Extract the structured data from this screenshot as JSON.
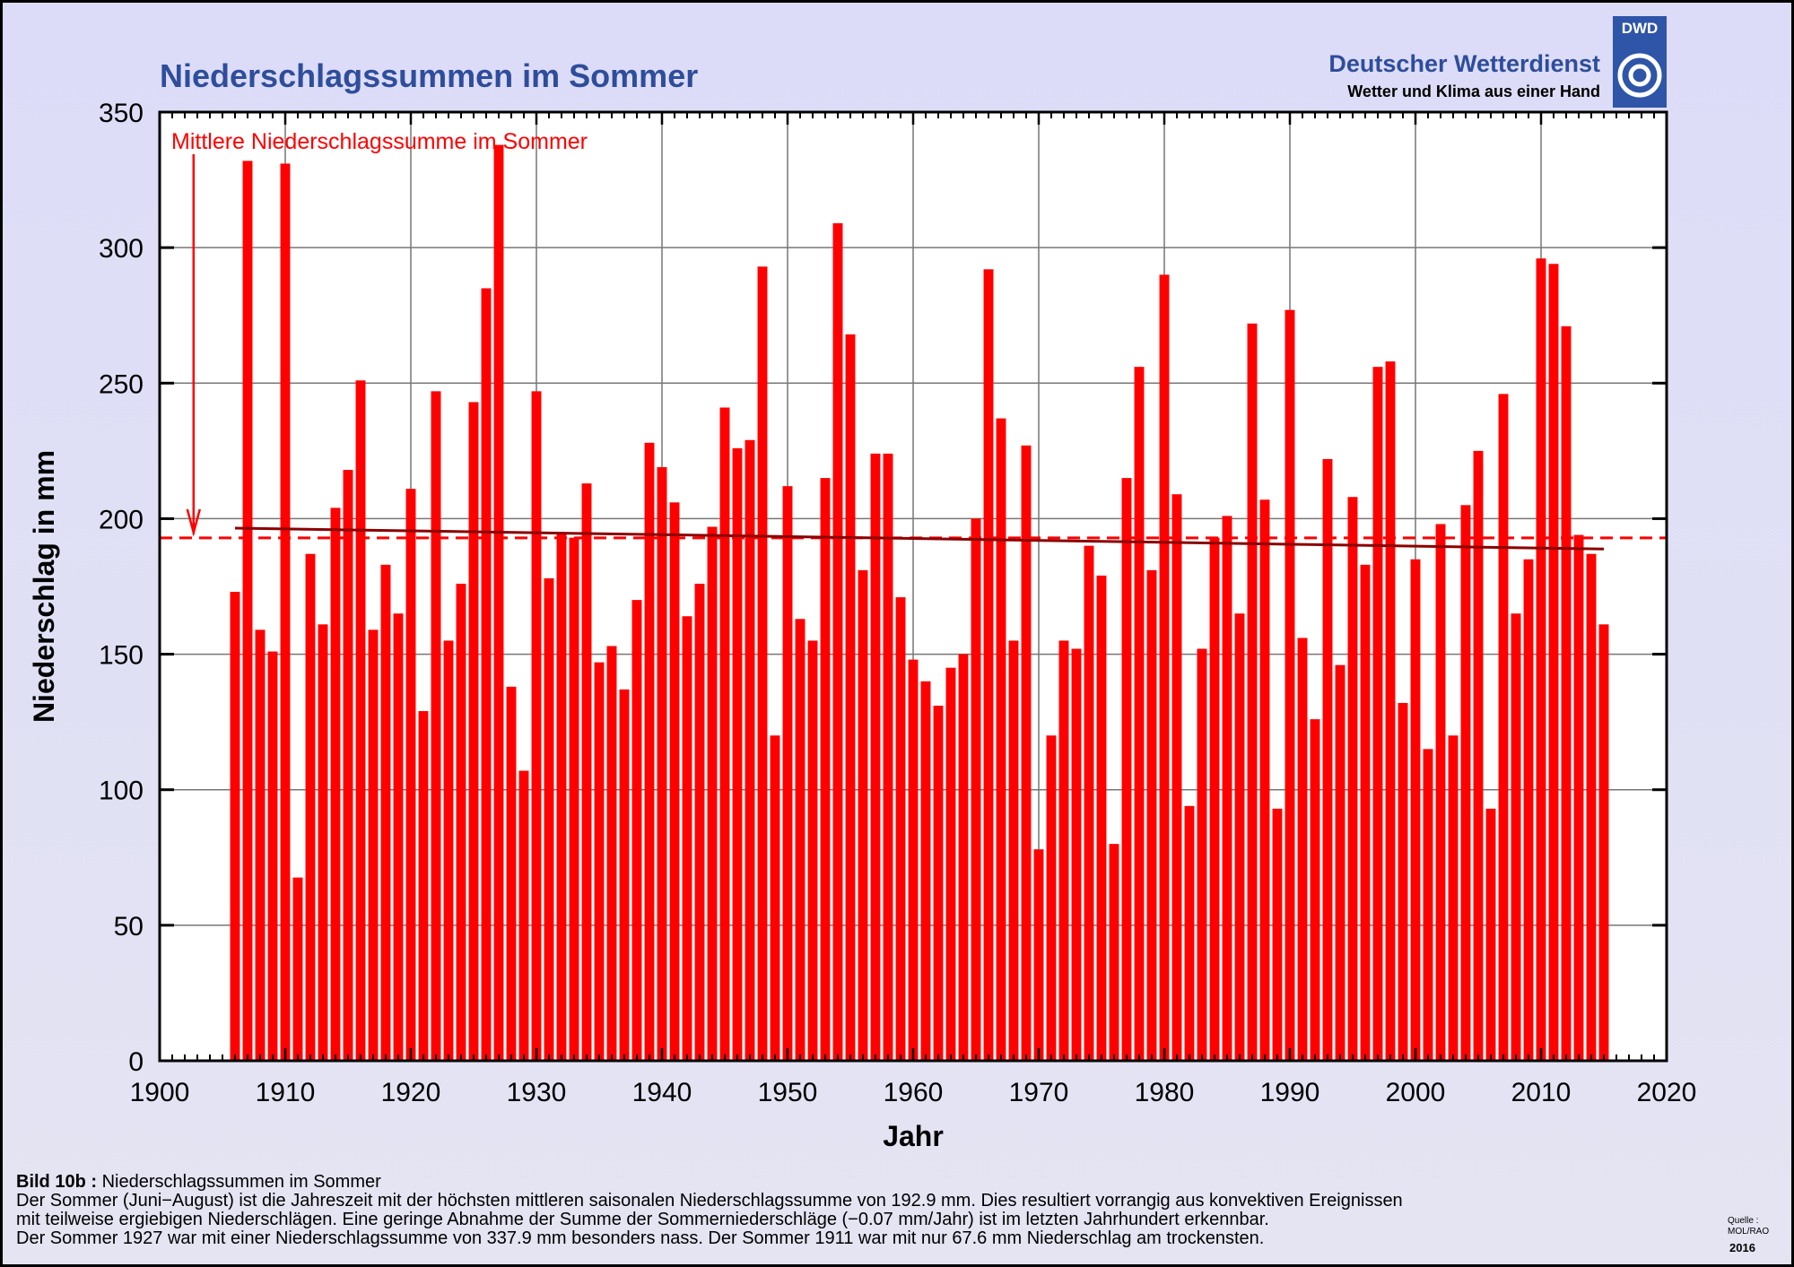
{
  "header": {
    "title": "Niederschlagssummen im Sommer",
    "org_name": "Deutscher Wetterdienst",
    "org_tagline": "Wetter und Klima aus einer Hand",
    "logo_text": "DWD"
  },
  "chart_data": {
    "type": "bar",
    "title": "Niederschlagssummen im Sommer",
    "xlabel": "Jahr",
    "ylabel": "Niederschlag in mm",
    "xlim": [
      1900,
      2020
    ],
    "ylim": [
      0,
      350
    ],
    "xticks": [
      "1900",
      "1910",
      "1920",
      "1930",
      "1940",
      "1950",
      "1960",
      "1970",
      "1980",
      "1990",
      "2000",
      "2010",
      "2020"
    ],
    "yticks": [
      "0",
      "50",
      "100",
      "150",
      "200",
      "250",
      "300",
      "350"
    ],
    "grid": true,
    "bar_color": "#ff0000",
    "x": [
      1906,
      1907,
      1908,
      1909,
      1910,
      1911,
      1912,
      1913,
      1914,
      1915,
      1916,
      1917,
      1918,
      1919,
      1920,
      1921,
      1922,
      1923,
      1924,
      1925,
      1926,
      1927,
      1928,
      1929,
      1930,
      1931,
      1932,
      1933,
      1934,
      1935,
      1936,
      1937,
      1938,
      1939,
      1940,
      1941,
      1942,
      1943,
      1944,
      1945,
      1946,
      1947,
      1948,
      1949,
      1950,
      1951,
      1952,
      1953,
      1954,
      1955,
      1956,
      1957,
      1958,
      1959,
      1960,
      1961,
      1962,
      1963,
      1964,
      1965,
      1966,
      1967,
      1968,
      1969,
      1970,
      1971,
      1972,
      1973,
      1974,
      1975,
      1976,
      1977,
      1978,
      1979,
      1980,
      1981,
      1982,
      1983,
      1984,
      1985,
      1986,
      1987,
      1988,
      1989,
      1990,
      1991,
      1992,
      1993,
      1994,
      1995,
      1996,
      1997,
      1998,
      1999,
      2000,
      2001,
      2002,
      2003,
      2004,
      2005,
      2006,
      2007,
      2008,
      2009,
      2010,
      2011,
      2012,
      2013,
      2014,
      2015
    ],
    "values": [
      173,
      332,
      159,
      151,
      331,
      67.6,
      187,
      161,
      204,
      218,
      251,
      159,
      183,
      165,
      211,
      129,
      247,
      155,
      176,
      243,
      285,
      337.9,
      138,
      107,
      247,
      178,
      195,
      193,
      213,
      147,
      153,
      137,
      170,
      228,
      219,
      206,
      164,
      176,
      197,
      241,
      226,
      229,
      293,
      120,
      212,
      163,
      155,
      215,
      309,
      268,
      181,
      224,
      224,
      171,
      148,
      140,
      131,
      145,
      150,
      200,
      292,
      237,
      155,
      227,
      78,
      120,
      155,
      152,
      190,
      179,
      80,
      215,
      256,
      181,
      290,
      209,
      94,
      152,
      193,
      201,
      165,
      272,
      207,
      93,
      277,
      156,
      126,
      222,
      146,
      208,
      183,
      256,
      258,
      132,
      185,
      115,
      198,
      120,
      205,
      225,
      93,
      246,
      165,
      185,
      296,
      294,
      271,
      194,
      187,
      161
    ],
    "mean": {
      "label": "Mittlere Niederschlagssumme im Sommer",
      "value": 192.9,
      "color": "#ff0000"
    },
    "trend": {
      "start": [
        1906,
        196.5
      ],
      "end": [
        2015,
        188.8
      ],
      "color": "#8b0000"
    }
  },
  "caption": {
    "label": "Bild 10b :",
    "heading": "Niederschlagssummen im Sommer",
    "lines": [
      "Der Sommer (Juni−August) ist die Jahreszeit mit der höchsten mittleren saisonalen Niederschlagssumme von 192.9 mm. Dies resultiert vorrangig aus konvektiven Ereignissen",
      "mit teilweise ergiebigen Niederschlägen. Eine geringe Abnahme der Summe der Sommerniederschläge (−0.07 mm/Jahr) ist im letzten Jahrhundert erkennbar.",
      "Der Sommer 1927 war mit einer Niederschlagssumme von 337.9 mm besonders nass. Der Sommer 1911 war mit nur 67.6 mm Niederschlag am trockensten."
    ]
  },
  "source": {
    "label": "Quelle :",
    "value": "MOL/RAO",
    "year": "2016"
  }
}
